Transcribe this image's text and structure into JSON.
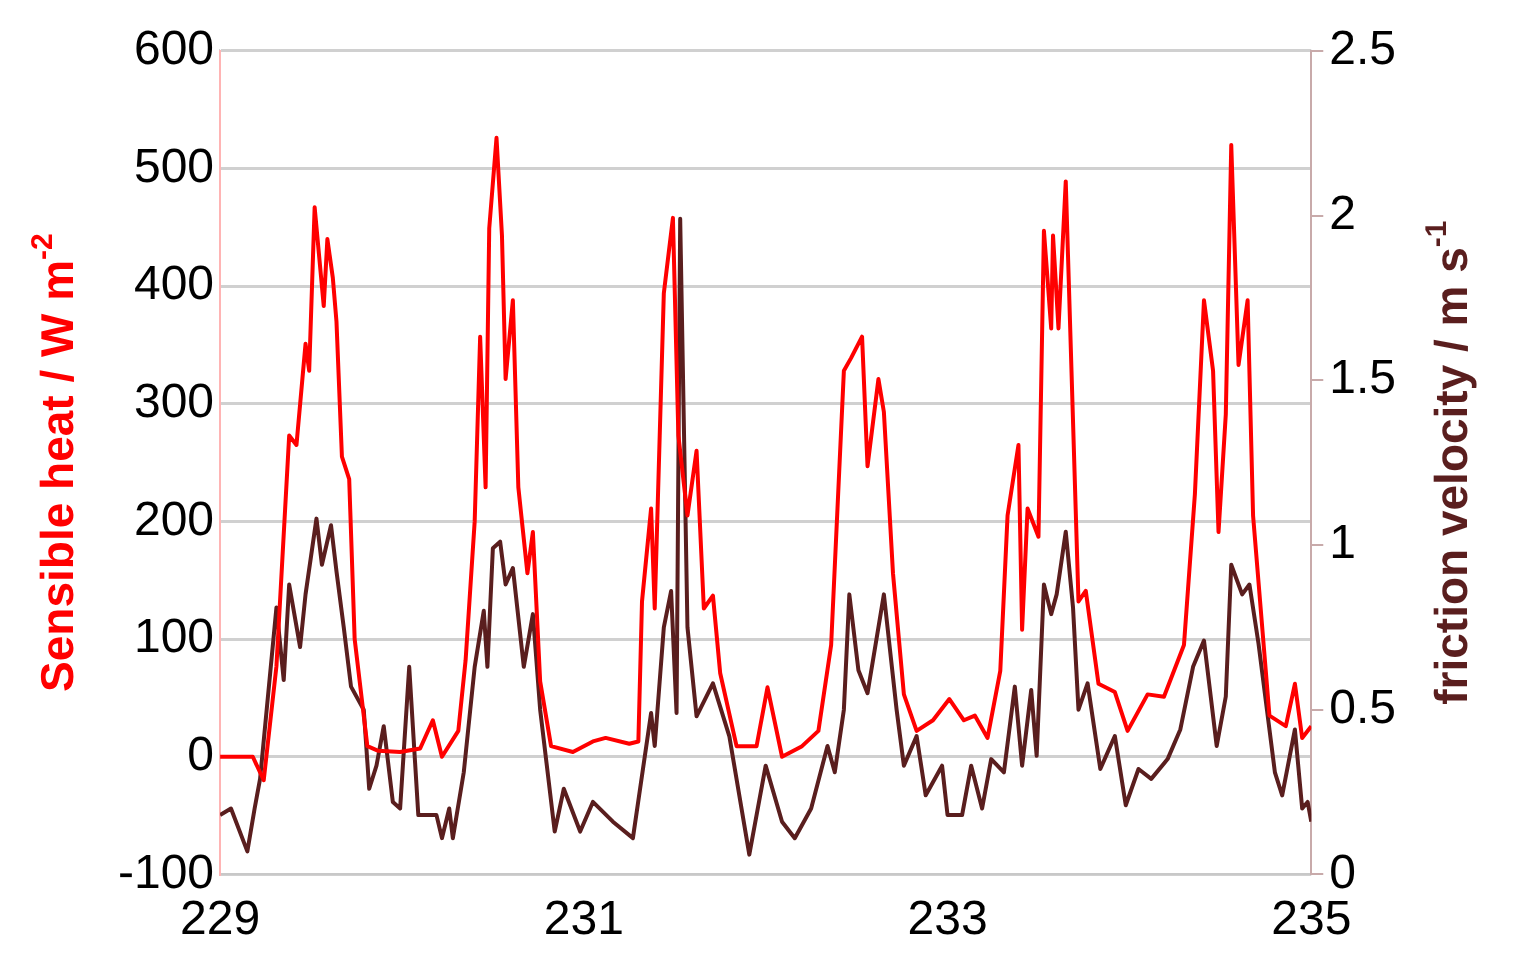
{
  "chart_data": {
    "type": "line",
    "ylabel": "Sensible heat / W m$^{-2}$",
    "y2label": "friction velocity / m s$^{-1}$",
    "xlim": [
      229,
      235
    ],
    "xticks": [
      229,
      231,
      233,
      235
    ],
    "ylim": [
      -100,
      600
    ],
    "yticks": [
      -100,
      0,
      100,
      200,
      300,
      400,
      500,
      600
    ],
    "y2lim": [
      0,
      2.5
    ],
    "y2ticks": [
      0,
      0.5,
      1,
      1.5,
      2,
      2.5
    ],
    "grid": "y",
    "legend": false,
    "marker": "none",
    "line_style": "solid",
    "series": [
      {
        "color": "#ff0000",
        "x": [
          229.0,
          229.18,
          229.24,
          229.31,
          229.38,
          229.42,
          229.47,
          229.49,
          229.52,
          229.57,
          229.59,
          229.62,
          229.64,
          229.67,
          229.71,
          229.74,
          229.81,
          229.87,
          229.99,
          230.1,
          230.17,
          230.22,
          230.31,
          230.35,
          230.4,
          230.43,
          230.46,
          230.48,
          230.52,
          230.55,
          230.57,
          230.61,
          230.64,
          230.69,
          230.72,
          230.76,
          230.82,
          230.94,
          231.05,
          231.12,
          231.25,
          231.3,
          231.32,
          231.37,
          231.39,
          231.44,
          231.49,
          231.52,
          231.57,
          231.62,
          231.66,
          231.71,
          231.75,
          231.84,
          231.95,
          232.01,
          232.09,
          232.2,
          232.29,
          232.36,
          232.43,
          232.47,
          232.53,
          232.56,
          232.62,
          232.65,
          232.7,
          232.76,
          232.83,
          232.92,
          233.01,
          233.09,
          233.15,
          233.22,
          233.29,
          233.33,
          233.39,
          233.41,
          233.44,
          233.5,
          233.53,
          233.57,
          233.58,
          233.61,
          233.65,
          233.72,
          233.76,
          233.83,
          233.92,
          233.99,
          234.1,
          234.19,
          234.3,
          234.36,
          234.41,
          234.46,
          234.49,
          234.53,
          234.56,
          234.6,
          234.65,
          234.68,
          234.77,
          234.86,
          234.91,
          234.95,
          235.0
        ],
        "values": [
          0,
          0,
          -20,
          77,
          273,
          265,
          351,
          328,
          467,
          383,
          440,
          407,
          370,
          255,
          236,
          100,
          9,
          5,
          4,
          7,
          31,
          0,
          22,
          82,
          200,
          357,
          229,
          449,
          526,
          443,
          321,
          388,
          229,
          156,
          191,
          64,
          9,
          4,
          13,
          16,
          11,
          13,
          132,
          211,
          126,
          394,
          458,
          273,
          205,
          260,
          126,
          137,
          71,
          9,
          9,
          59,
          0,
          9,
          22,
          95,
          328,
          339,
          357,
          247,
          321,
          293,
          156,
          53,
          22,
          31,
          49,
          31,
          35,
          16,
          73,
          205,
          265,
          108,
          211,
          187,
          447,
          364,
          443,
          364,
          489,
          132,
          141,
          62,
          55,
          22,
          53,
          51,
          95,
          223,
          388,
          328,
          191,
          291,
          520,
          333,
          388,
          205,
          35,
          26,
          62,
          16,
          26
        ]
      },
      {
        "color": "#5a1e1e",
        "axis": "y2",
        "x": [
          229.0,
          229.06,
          229.15,
          229.19,
          229.22,
          229.31,
          229.35,
          229.38,
          229.44,
          229.47,
          229.53,
          229.56,
          229.61,
          229.64,
          229.68,
          229.72,
          229.79,
          229.82,
          229.86,
          229.9,
          229.95,
          229.99,
          230.04,
          230.09,
          230.19,
          230.22,
          230.26,
          230.28,
          230.34,
          230.4,
          230.45,
          230.47,
          230.5,
          230.54,
          230.57,
          230.61,
          230.67,
          230.72,
          230.76,
          230.84,
          230.89,
          230.98,
          231.05,
          231.16,
          231.27,
          231.37,
          231.39,
          231.44,
          231.48,
          231.51,
          231.53,
          231.57,
          231.62,
          231.71,
          231.8,
          231.91,
          232.0,
          232.09,
          232.16,
          232.25,
          232.34,
          232.38,
          232.43,
          232.46,
          232.51,
          232.56,
          232.65,
          232.72,
          232.76,
          232.83,
          232.88,
          232.97,
          233.0,
          233.08,
          233.13,
          233.19,
          233.24,
          233.31,
          233.37,
          233.41,
          233.46,
          233.49,
          233.53,
          233.57,
          233.6,
          233.65,
          233.69,
          233.72,
          233.77,
          233.84,
          233.92,
          233.98,
          234.05,
          234.12,
          234.21,
          234.28,
          234.35,
          234.41,
          234.48,
          234.53,
          234.56,
          234.62,
          234.66,
          234.71,
          234.8,
          234.84,
          234.91,
          234.95,
          234.98,
          235.0
        ],
        "values": [
          0.18,
          0.2,
          0.07,
          0.2,
          0.29,
          0.81,
          0.59,
          0.88,
          0.69,
          0.85,
          1.08,
          0.94,
          1.06,
          0.92,
          0.75,
          0.57,
          0.5,
          0.26,
          0.33,
          0.45,
          0.22,
          0.2,
          0.63,
          0.18,
          0.18,
          0.11,
          0.2,
          0.11,
          0.31,
          0.63,
          0.8,
          0.63,
          0.99,
          1.01,
          0.88,
          0.93,
          0.63,
          0.79,
          0.5,
          0.13,
          0.26,
          0.13,
          0.22,
          0.16,
          0.11,
          0.49,
          0.39,
          0.75,
          0.86,
          0.49,
          1.99,
          0.75,
          0.48,
          0.58,
          0.42,
          0.06,
          0.33,
          0.16,
          0.11,
          0.2,
          0.39,
          0.31,
          0.5,
          0.85,
          0.62,
          0.55,
          0.85,
          0.5,
          0.33,
          0.42,
          0.24,
          0.33,
          0.18,
          0.18,
          0.33,
          0.2,
          0.35,
          0.31,
          0.57,
          0.33,
          0.56,
          0.36,
          0.88,
          0.79,
          0.85,
          1.04,
          0.81,
          0.5,
          0.58,
          0.32,
          0.42,
          0.21,
          0.32,
          0.29,
          0.35,
          0.44,
          0.63,
          0.71,
          0.39,
          0.54,
          0.94,
          0.85,
          0.88,
          0.7,
          0.31,
          0.24,
          0.44,
          0.2,
          0.22,
          0.16
        ]
      }
    ]
  }
}
